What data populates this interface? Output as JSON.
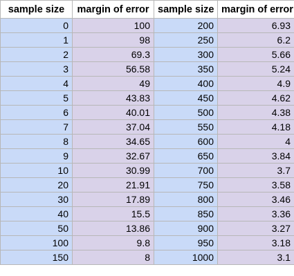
{
  "headers": [
    "sample size",
    "margin of error",
    "sample size",
    "margin of error"
  ],
  "rows": [
    [
      "0",
      "100",
      "200",
      "6.93"
    ],
    [
      "1",
      "98",
      "250",
      "6.2"
    ],
    [
      "2",
      "69.3",
      "300",
      "5.66"
    ],
    [
      "3",
      "56.58",
      "350",
      "5.24"
    ],
    [
      "4",
      "49",
      "400",
      "4.9"
    ],
    [
      "5",
      "43.83",
      "450",
      "4.62"
    ],
    [
      "6",
      "40.01",
      "500",
      "4.38"
    ],
    [
      "7",
      "37.04",
      "550",
      "4.18"
    ],
    [
      "8",
      "34.65",
      "600",
      "4"
    ],
    [
      "9",
      "32.67",
      "650",
      "3.84"
    ],
    [
      "10",
      "30.99",
      "700",
      "3.7"
    ],
    [
      "20",
      "21.91",
      "750",
      "3.58"
    ],
    [
      "30",
      "17.89",
      "800",
      "3.46"
    ],
    [
      "40",
      "15.5",
      "850",
      "3.36"
    ],
    [
      "50",
      "13.86",
      "900",
      "3.27"
    ],
    [
      "100",
      "9.8",
      "950",
      "3.18"
    ],
    [
      "150",
      "8",
      "1000",
      "3.1"
    ]
  ],
  "colors": {
    "sample_size_fill": "#c9daf8",
    "margin_of_error_fill": "#d9d2e9",
    "grid_line": "#b7b7b7"
  }
}
